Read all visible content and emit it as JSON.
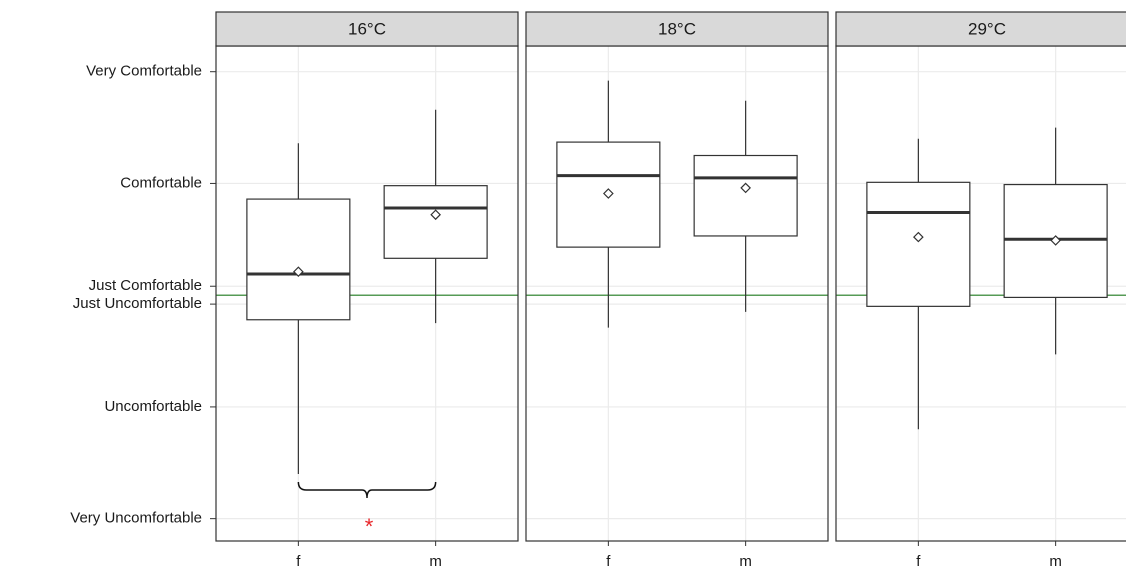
{
  "chart_data": {
    "type": "box",
    "categories": [
      "f",
      "m"
    ],
    "ylim": [
      -2.2,
      2.23
    ],
    "yticks": [
      {
        "value": 2,
        "label": "Very Comfortable"
      },
      {
        "value": 1,
        "label": "Comfortable"
      },
      {
        "value": 0.08,
        "label": "Just Comfortable"
      },
      {
        "value": -0.08,
        "label": "Just Uncomfortable"
      },
      {
        "value": -1,
        "label": "Uncomfortable"
      },
      {
        "value": -2,
        "label": "Very Uncomfortable"
      }
    ],
    "grid": true,
    "color": "#333333",
    "hline": {
      "value": 0,
      "color": "#1f7a1f"
    },
    "annotation": {
      "text": "*",
      "color": "#e8262a"
    },
    "facets": [
      {
        "title": "16°C",
        "boxes": [
          {
            "low": -1.6,
            "q1": -0.22,
            "median": 0.19,
            "q3": 0.86,
            "high": 1.36,
            "mean": 0.21
          },
          {
            "low": -0.25,
            "q1": 0.33,
            "median": 0.78,
            "q3": 0.98,
            "high": 1.66,
            "mean": 0.72
          }
        ]
      },
      {
        "title": "18°C",
        "boxes": [
          {
            "low": -0.29,
            "q1": 0.43,
            "median": 1.07,
            "q3": 1.37,
            "high": 1.92,
            "mean": 0.91
          },
          {
            "low": -0.15,
            "q1": 0.53,
            "median": 1.05,
            "q3": 1.25,
            "high": 1.74,
            "mean": 0.96
          }
        ]
      },
      {
        "title": "29°C",
        "boxes": [
          {
            "low": -1.2,
            "q1": -0.1,
            "median": 0.74,
            "q3": 1.01,
            "high": 1.4,
            "mean": 0.52
          },
          {
            "low": -0.53,
            "q1": -0.02,
            "median": 0.5,
            "q3": 0.99,
            "high": 1.5,
            "mean": 0.49
          }
        ]
      }
    ]
  }
}
